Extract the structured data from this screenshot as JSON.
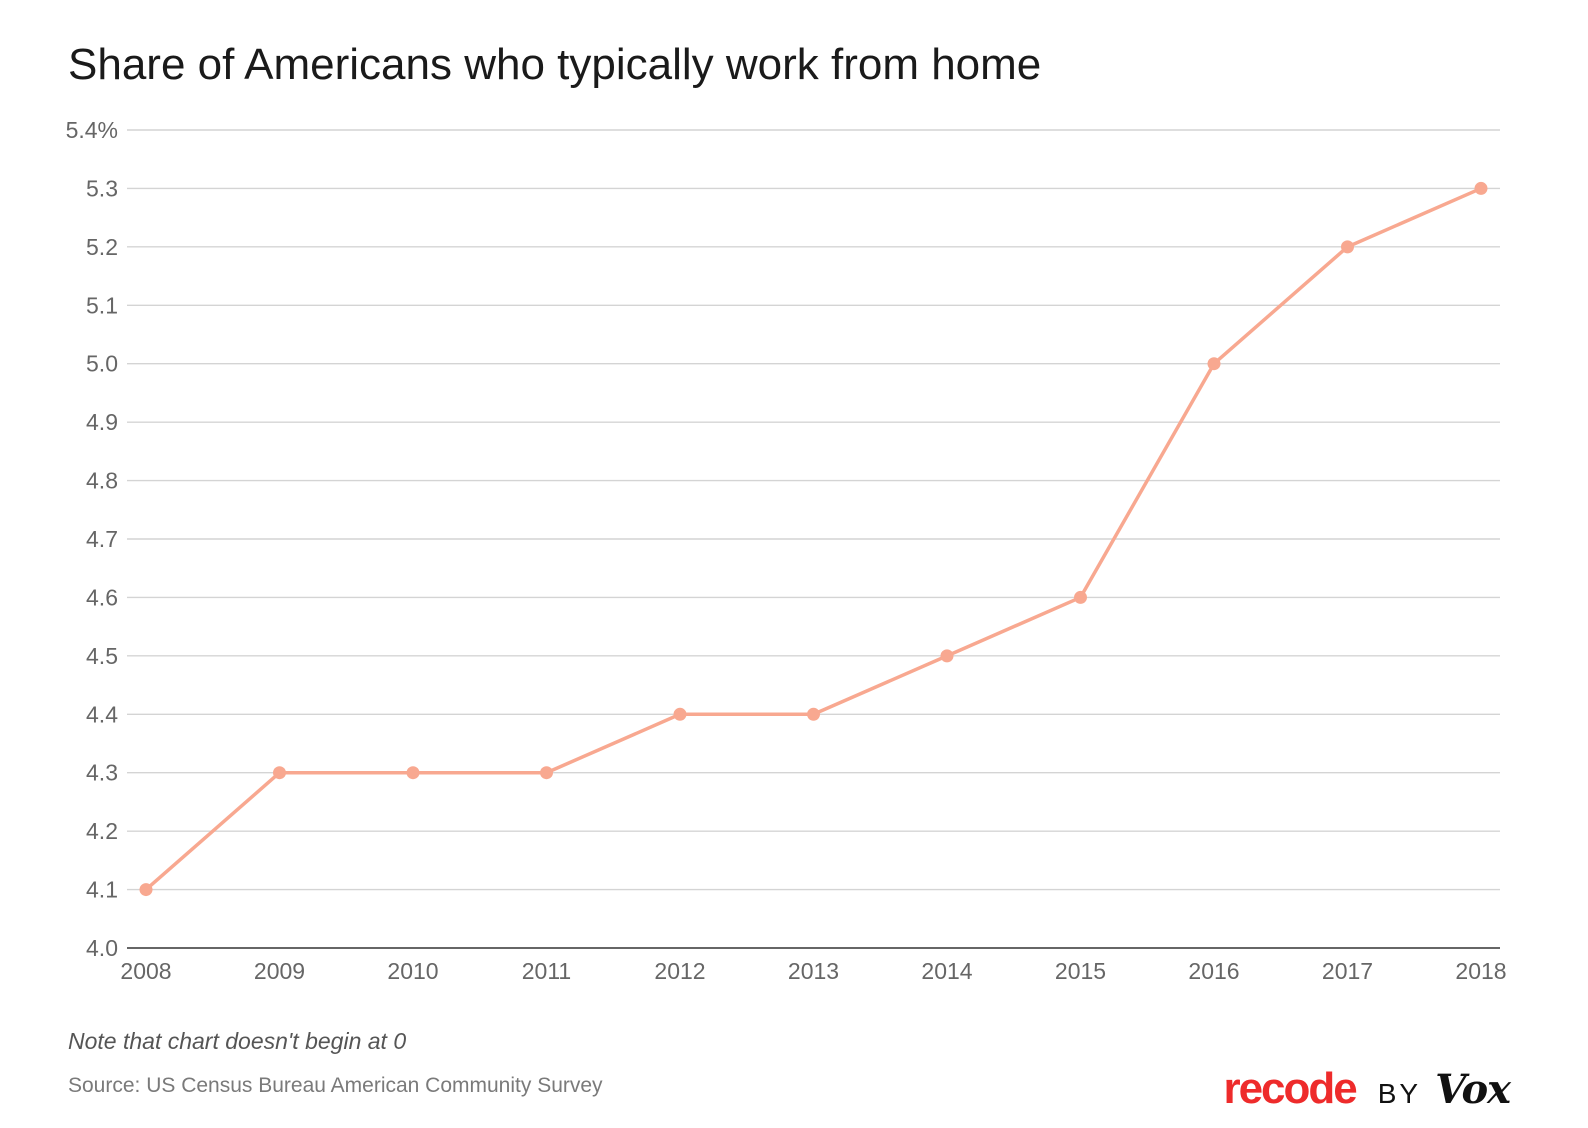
{
  "header": {
    "title": "Share of Americans who typically work from home"
  },
  "footer": {
    "note": "Note that chart doesn't begin at 0",
    "source": "Source: US Census Bureau American Community Survey"
  },
  "branding": {
    "recode": "recode",
    "by": "BY",
    "vox": "Vox",
    "recode_color": "#ee2b2b"
  },
  "chart_data": {
    "type": "line",
    "title": "Share of Americans who typically work from home",
    "xlabel": "",
    "ylabel": "",
    "x": [
      "2008",
      "2009",
      "2010",
      "2011",
      "2012",
      "2013",
      "2014",
      "2015",
      "2016",
      "2017",
      "2018"
    ],
    "series": [
      {
        "values": [
          4.1,
          4.3,
          4.3,
          4.3,
          4.4,
          4.4,
          4.5,
          4.6,
          5.0,
          5.2,
          5.3
        ],
        "color": "#f8a890"
      }
    ],
    "ylim": [
      4.0,
      5.4
    ],
    "yticks": [
      4.0,
      4.1,
      4.2,
      4.3,
      4.4,
      4.5,
      4.6,
      4.7,
      4.8,
      4.9,
      5.0,
      5.1,
      5.2,
      5.3,
      5.4
    ],
    "ytick_labels": [
      "4.0",
      "4.1",
      "4.2",
      "4.3",
      "4.4",
      "4.5",
      "4.6",
      "4.7",
      "4.8",
      "4.9",
      "5.0",
      "5.1",
      "5.2",
      "5.3",
      "5.4%"
    ],
    "grid": true,
    "legend": "none",
    "note": "Note that chart doesn't begin at 0",
    "source": "Source: US Census Bureau American Community Survey"
  }
}
